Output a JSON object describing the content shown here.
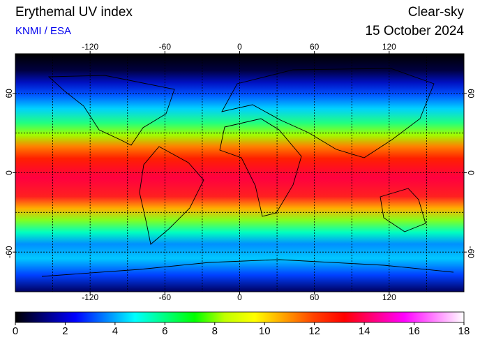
{
  "header": {
    "title": "Erythemal UV index",
    "source": "KNMI / ESA",
    "mode": "Clear-sky",
    "date": "15 October 2024"
  },
  "map": {
    "xlim": [
      -180,
      180
    ],
    "ylim": [
      -90,
      90
    ],
    "xticks": [
      -120,
      -60,
      0,
      60,
      120
    ],
    "yticks": [
      -60,
      0,
      60
    ],
    "xgrid": [
      -150,
      -120,
      -90,
      -60,
      -30,
      0,
      30,
      60,
      90,
      120,
      150
    ],
    "ygrid": [
      -60,
      -30,
      0,
      30,
      60
    ]
  },
  "colorbar": {
    "lim": [
      0,
      18
    ],
    "ticks": [
      0,
      2,
      4,
      6,
      8,
      10,
      12,
      14,
      16,
      18
    ],
    "colors": [
      "#000000",
      "#000080",
      "#0000ff",
      "#0080ff",
      "#00ffff",
      "#00ff80",
      "#00ff00",
      "#c0ff00",
      "#ffff00",
      "#ffa000",
      "#ff4000",
      "#ff0000",
      "#ff0080",
      "#ff00ff",
      "#ff80ff",
      "#ffffff"
    ]
  }
}
